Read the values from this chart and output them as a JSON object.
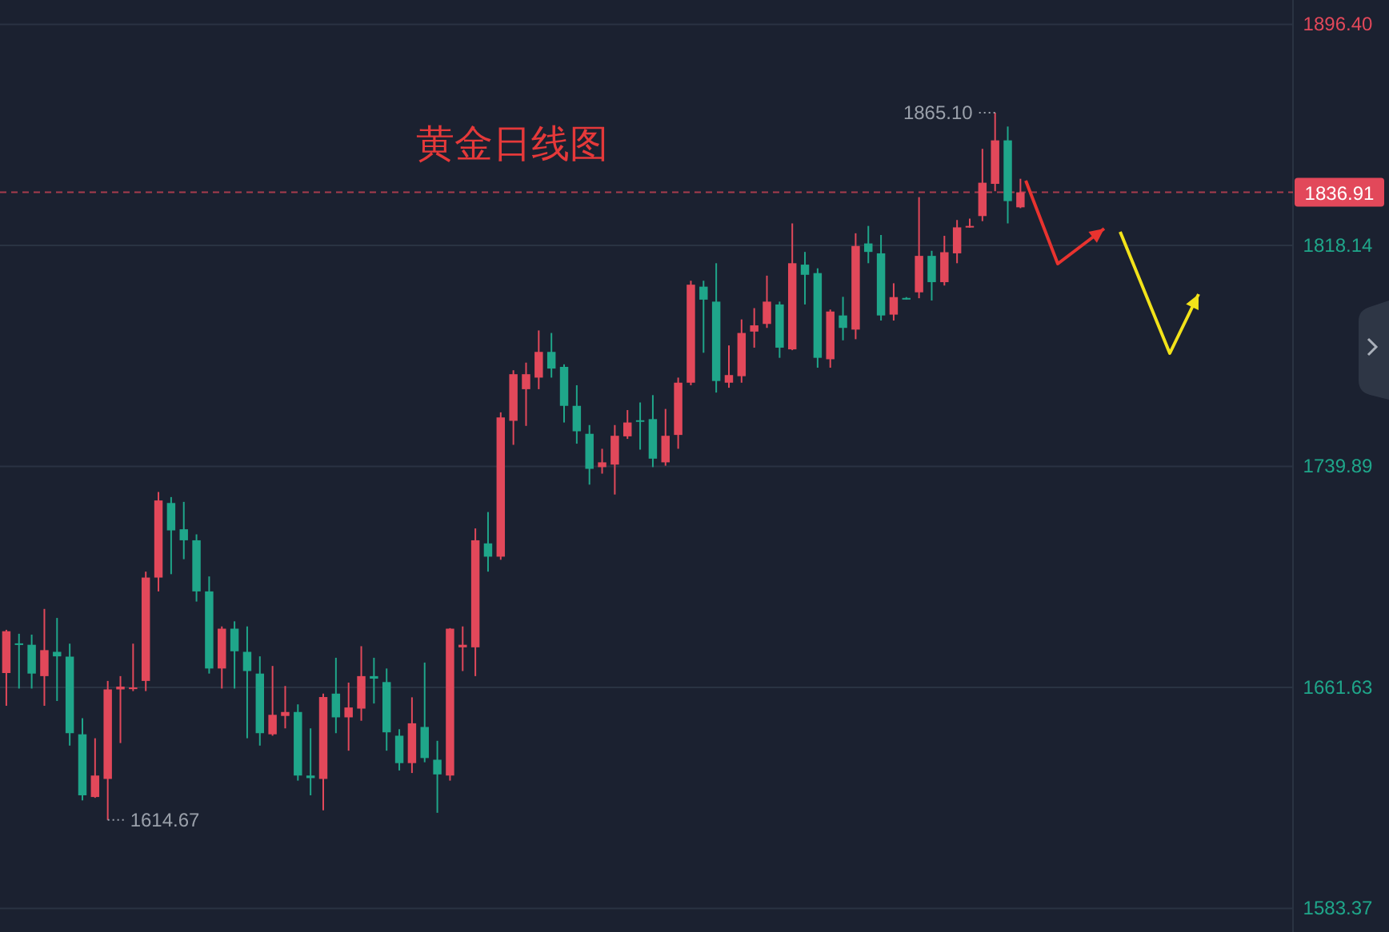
{
  "chart_data": {
    "type": "candlestick",
    "title": "黄金日线图",
    "categories": [
      null,
      null,
      null,
      null,
      null,
      null,
      null,
      null,
      null,
      null,
      null,
      null,
      null,
      null,
      null,
      null,
      null,
      null,
      null,
      null,
      null,
      null,
      null,
      null,
      null,
      null,
      null,
      null,
      null,
      null,
      null,
      null,
      null,
      null,
      null,
      null,
      null,
      null,
      null,
      null,
      null,
      null,
      null,
      null,
      null,
      null,
      null,
      null,
      null,
      null,
      null,
      null,
      null,
      null,
      null,
      null,
      null,
      null,
      null,
      null,
      null,
      null,
      null,
      null,
      null,
      null,
      null,
      null,
      null,
      null,
      null,
      null,
      null,
      null,
      null,
      null,
      null,
      null,
      null,
      null,
      null,
      null,
      null,
      null,
      null,
      null,
      null,
      null,
      null,
      null,
      null,
      null,
      null,
      null,
      null,
      null,
      null,
      null,
      null,
      null,
      null,
      null
    ],
    "ohlc": [
      [
        1666.7,
        1682.0,
        1655.1,
        1681.5
      ],
      [
        1677.2,
        1680.6,
        1661.2,
        1677.0
      ],
      [
        1676.7,
        1680.3,
        1661.2,
        1666.5
      ],
      [
        1665.6,
        1689.4,
        1655.1,
        1674.8
      ],
      [
        1674.2,
        1686.2,
        1656.8,
        1672.6
      ],
      [
        1672.5,
        1677.1,
        1641.0,
        1645.4
      ],
      [
        1645.0,
        1650.7,
        1621.6,
        1623.4
      ],
      [
        1622.8,
        1643.6,
        1622.5,
        1630.4
      ],
      [
        1629.2,
        1663.9,
        1614.67,
        1660.9
      ],
      [
        1660.9,
        1665.6,
        1641.9,
        1661.9
      ],
      [
        1661.0,
        1677.1,
        1660.3,
        1661.6
      ],
      [
        1663.9,
        1702.6,
        1660.3,
        1700.5
      ],
      [
        1700.5,
        1730.8,
        1695.6,
        1727.8
      ],
      [
        1726.9,
        1729.0,
        1701.7,
        1717.2
      ],
      [
        1717.6,
        1727.3,
        1707.0,
        1713.7
      ],
      [
        1713.7,
        1715.8,
        1692.0,
        1695.6
      ],
      [
        1695.6,
        1700.9,
        1666.5,
        1668.3
      ],
      [
        1668.3,
        1683.2,
        1661.2,
        1682.4
      ],
      [
        1682.4,
        1685.0,
        1661.2,
        1674.4
      ],
      [
        1674.2,
        1683.2,
        1643.6,
        1667.4
      ],
      [
        1666.5,
        1672.6,
        1641.0,
        1645.4
      ],
      [
        1645.0,
        1669.2,
        1644.5,
        1651.9
      ],
      [
        1651.5,
        1662.1,
        1647.1,
        1652.9
      ],
      [
        1652.9,
        1655.6,
        1628.6,
        1630.4
      ],
      [
        1630.4,
        1647.1,
        1623.4,
        1629.5
      ],
      [
        1629.2,
        1659.4,
        1618.1,
        1658.2
      ],
      [
        1659.4,
        1672.1,
        1645.4,
        1651.0
      ],
      [
        1651.0,
        1663.3,
        1639.2,
        1654.5
      ],
      [
        1654.1,
        1676.2,
        1649.8,
        1665.6
      ],
      [
        1665.6,
        1672.1,
        1655.9,
        1664.7
      ],
      [
        1663.5,
        1668.3,
        1639.2,
        1645.7
      ],
      [
        1644.5,
        1646.8,
        1632.2,
        1634.8
      ],
      [
        1634.8,
        1658.1,
        1631.3,
        1648.9
      ],
      [
        1647.6,
        1670.4,
        1635.1,
        1636.6
      ],
      [
        1636.0,
        1642.7,
        1617.2,
        1630.8
      ],
      [
        1630.4,
        1682.6,
        1628.6,
        1682.4
      ],
      [
        1675.8,
        1683.2,
        1667.4,
        1676.7
      ],
      [
        1675.8,
        1717.9,
        1665.6,
        1713.7
      ],
      [
        1712.6,
        1723.7,
        1702.6,
        1707.9
      ],
      [
        1707.9,
        1759.0,
        1706.8,
        1757.2
      ],
      [
        1756.0,
        1773.9,
        1747.5,
        1772.5
      ],
      [
        1767.2,
        1776.6,
        1754.2,
        1772.5
      ],
      [
        1771.3,
        1788.0,
        1767.2,
        1780.4
      ],
      [
        1780.4,
        1787.1,
        1771.3,
        1774.5
      ],
      [
        1775.1,
        1776.0,
        1755.4,
        1761.3
      ],
      [
        1761.3,
        1768.6,
        1747.9,
        1752.3
      ],
      [
        1751.4,
        1754.5,
        1733.4,
        1739.0
      ],
      [
        1739.6,
        1746.1,
        1737.3,
        1741.3
      ],
      [
        1740.5,
        1754.5,
        1729.9,
        1750.7
      ],
      [
        1750.5,
        1759.8,
        1749.6,
        1755.4
      ],
      [
        1756.2,
        1762.5,
        1745.8,
        1755.7
      ],
      [
        1756.6,
        1765.1,
        1739.6,
        1742.6
      ],
      [
        1741.3,
        1760.2,
        1740.1,
        1750.7
      ],
      [
        1751.0,
        1771.3,
        1746.1,
        1769.5
      ],
      [
        1769.5,
        1805.6,
        1768.6,
        1804.2
      ],
      [
        1803.5,
        1805.6,
        1780.1,
        1798.9
      ],
      [
        1798.2,
        1811.8,
        1766.0,
        1770.1
      ],
      [
        1769.5,
        1782.7,
        1767.7,
        1772.2
      ],
      [
        1771.8,
        1791.9,
        1769.5,
        1787.1
      ],
      [
        1787.6,
        1795.9,
        1781.9,
        1789.8
      ],
      [
        1790.3,
        1807.4,
        1788.9,
        1798.2
      ],
      [
        1797.2,
        1798.2,
        1778.3,
        1781.9
      ],
      [
        1781.3,
        1825.9,
        1781.0,
        1811.8
      ],
      [
        1811.3,
        1815.8,
        1797.2,
        1807.7
      ],
      [
        1808.3,
        1810.0,
        1774.8,
        1778.3
      ],
      [
        1777.8,
        1795.4,
        1774.8,
        1794.7
      ],
      [
        1793.3,
        1799.9,
        1784.5,
        1788.9
      ],
      [
        1788.3,
        1822.4,
        1784.9,
        1817.9
      ],
      [
        1818.8,
        1825.0,
        1811.8,
        1815.8
      ],
      [
        1815.3,
        1821.8,
        1791.5,
        1793.3
      ],
      [
        1793.6,
        1804.7,
        1791.5,
        1799.8
      ],
      [
        1799.5,
        1799.8,
        1799.0,
        1799.3
      ],
      [
        1801.5,
        1835.2,
        1799.4,
        1814.4
      ],
      [
        1814.4,
        1816.2,
        1798.6,
        1805.1
      ],
      [
        1805.1,
        1821.5,
        1803.9,
        1815.7
      ],
      [
        1815.3,
        1827.1,
        1811.8,
        1824.5
      ],
      [
        1824.5,
        1827.6,
        1824.4,
        1825.0
      ],
      [
        1828.5,
        1852.3,
        1826.7,
        1840.3
      ],
      [
        1839.9,
        1865.1,
        1837.3,
        1855.3
      ],
      [
        1855.3,
        1860.2,
        1825.9,
        1833.8
      ],
      [
        1831.6,
        1841.7,
        1831.3,
        1836.91
      ],
      null,
      null,
      null,
      null,
      null,
      null,
      null,
      null,
      null,
      null,
      null,
      null,
      null,
      null,
      null,
      null,
      null,
      null,
      null,
      null,
      null
    ],
    "colors": [
      "#e2485a",
      "#1fa68a",
      "#1fa68a",
      "#e2485a",
      "#1fa68a",
      "#1fa68a",
      "#1fa68a",
      "#e2485a",
      "#e2485a",
      "#e2485a",
      "#e2485a",
      "#e2485a",
      "#e2485a",
      "#1fa68a",
      "#1fa68a",
      "#1fa68a",
      "#1fa68a",
      "#e2485a",
      "#1fa68a",
      "#1fa68a",
      "#1fa68a",
      "#e2485a",
      "#e2485a",
      "#1fa68a",
      "#1fa68a",
      "#e2485a",
      "#1fa68a",
      "#e2485a",
      "#e2485a",
      "#1fa68a",
      "#1fa68a",
      "#1fa68a",
      "#e2485a",
      "#1fa68a",
      "#1fa68a",
      "#e2485a",
      "#e2485a",
      "#e2485a",
      "#1fa68a",
      "#e2485a",
      "#e2485a",
      "#e2485a",
      "#e2485a",
      "#1fa68a",
      "#1fa68a",
      "#1fa68a",
      "#1fa68a",
      "#e2485a",
      "#e2485a",
      "#e2485a",
      "#1fa68a",
      "#1fa68a",
      "#e2485a",
      "#e2485a",
      "#e2485a",
      "#1fa68a",
      "#1fa68a",
      "#e2485a",
      "#e2485a",
      "#e2485a",
      "#e2485a",
      "#1fa68a",
      "#e2485a",
      "#1fa68a",
      "#1fa68a",
      "#e2485a",
      "#1fa68a",
      "#e2485a",
      "#1fa68a",
      "#1fa68a",
      "#e2485a",
      "#1fa68a",
      "#e2485a",
      "#1fa68a",
      "#e2485a",
      "#e2485a",
      "#e2485a",
      "#e2485a",
      "#e2485a",
      "#1fa68a",
      "#e2485a",
      null,
      null,
      null,
      null,
      null,
      null,
      null,
      null,
      null,
      null,
      null,
      null,
      null,
      null,
      null,
      null,
      null,
      null,
      null,
      null,
      null
    ],
    "ylim": [
      1575,
      1905
    ],
    "yticks": [
      {
        "value": 1896.4,
        "label": "1896.40"
      },
      {
        "value": 1818.14,
        "label": "1818.14"
      },
      {
        "value": 1739.89,
        "label": "1739.89"
      },
      {
        "value": 1661.63,
        "label": "1661.63"
      },
      {
        "value": 1583.37,
        "label": "1583.37"
      }
    ],
    "grid": "y",
    "ref_lines": [
      {
        "axis": "y",
        "value": 1836.91,
        "label": "1836.91",
        "color": "#e2485a",
        "line_style": "dashed"
      }
    ],
    "annotations": [
      "1865.10",
      "1614.67"
    ]
  }
}
